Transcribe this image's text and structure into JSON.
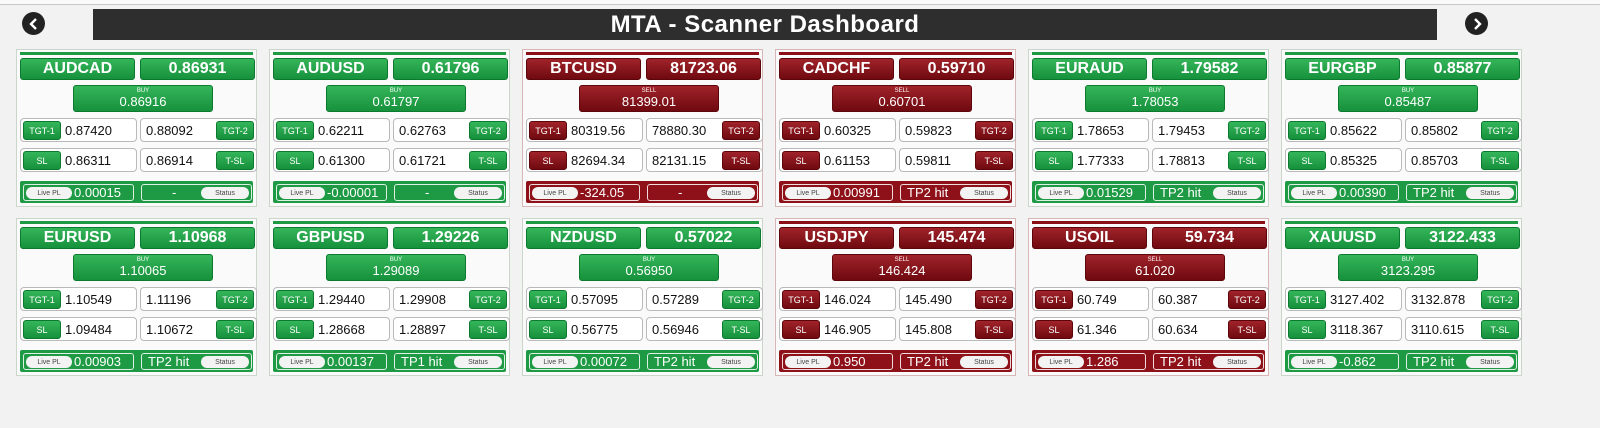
{
  "app": {
    "title": "MTA - Scanner Dashboard"
  },
  "colors": {
    "buy": "#1e9a44",
    "sell": "#8e1119"
  },
  "labels": {
    "tgt1": "TGT-1",
    "tgt2": "TGT-2",
    "sl": "SL",
    "tsl": "T-SL",
    "live_pl": "Live PL",
    "status": "Status"
  },
  "cards": [
    {
      "symbol": "AUDCAD",
      "price": "0.86931",
      "side": "BUY",
      "entry": "0.86916",
      "tgt1": "0.87420",
      "tgt2": "0.88092",
      "sl": "0.86311",
      "tsl": "0.86914",
      "live_pl": "0.00015",
      "status": "-"
    },
    {
      "symbol": "AUDUSD",
      "price": "0.61796",
      "side": "BUY",
      "entry": "0.61797",
      "tgt1": "0.62211",
      "tgt2": "0.62763",
      "sl": "0.61300",
      "tsl": "0.61721",
      "live_pl": "-0.00001",
      "status": "-"
    },
    {
      "symbol": "BTCUSD",
      "price": "81723.06",
      "side": "SELL",
      "entry": "81399.01",
      "tgt1": "80319.56",
      "tgt2": "78880.30",
      "sl": "82694.34",
      "tsl": "82131.15",
      "live_pl": "-324.05",
      "status": "-"
    },
    {
      "symbol": "CADCHF",
      "price": "0.59710",
      "side": "SELL",
      "entry": "0.60701",
      "tgt1": "0.60325",
      "tgt2": "0.59823",
      "sl": "0.61153",
      "tsl": "0.59811",
      "live_pl": "0.00991",
      "status": "TP2 hit"
    },
    {
      "symbol": "EURAUD",
      "price": "1.79582",
      "side": "BUY",
      "entry": "1.78053",
      "tgt1": "1.78653",
      "tgt2": "1.79453",
      "sl": "1.77333",
      "tsl": "1.78813",
      "live_pl": "0.01529",
      "status": "TP2 hit"
    },
    {
      "symbol": "EURGBP",
      "price": "0.85877",
      "side": "BUY",
      "entry": "0.85487",
      "tgt1": "0.85622",
      "tgt2": "0.85802",
      "sl": "0.85325",
      "tsl": "0.85703",
      "live_pl": "0.00390",
      "status": "TP2 hit"
    },
    {
      "symbol": "EURUSD",
      "price": "1.10968",
      "side": "BUY",
      "entry": "1.10065",
      "tgt1": "1.10549",
      "tgt2": "1.11196",
      "sl": "1.09484",
      "tsl": "1.10672",
      "live_pl": "0.00903",
      "status": "TP2 hit"
    },
    {
      "symbol": "GBPUSD",
      "price": "1.29226",
      "side": "BUY",
      "entry": "1.29089",
      "tgt1": "1.29440",
      "tgt2": "1.29908",
      "sl": "1.28668",
      "tsl": "1.28897",
      "live_pl": "0.00137",
      "status": "TP1 hit"
    },
    {
      "symbol": "NZDUSD",
      "price": "0.57022",
      "side": "BUY",
      "entry": "0.56950",
      "tgt1": "0.57095",
      "tgt2": "0.57289",
      "sl": "0.56775",
      "tsl": "0.56946",
      "live_pl": "0.00072",
      "status": "TP2 hit"
    },
    {
      "symbol": "USDJPY",
      "price": "145.474",
      "side": "SELL",
      "entry": "146.424",
      "tgt1": "146.024",
      "tgt2": "145.490",
      "sl": "146.905",
      "tsl": "145.808",
      "live_pl": "0.950",
      "status": "TP2 hit"
    },
    {
      "symbol": "USOIL",
      "price": "59.734",
      "side": "SELL",
      "entry": "61.020",
      "tgt1": "60.749",
      "tgt2": "60.387",
      "sl": "61.346",
      "tsl": "60.634",
      "live_pl": "1.286",
      "status": "TP2 hit"
    },
    {
      "symbol": "XAUUSD",
      "price": "3122.433",
      "side": "BUY",
      "entry": "3123.295",
      "tgt1": "3127.402",
      "tgt2": "3132.878",
      "sl": "3118.367",
      "tsl": "3110.615",
      "live_pl": "-0.862",
      "status": "TP2 hit"
    }
  ]
}
